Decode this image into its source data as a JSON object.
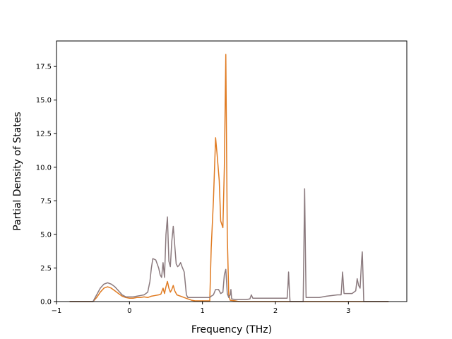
{
  "chart_data": {
    "type": "line",
    "title": "",
    "xlabel": "Frequency (THz)",
    "ylabel": "Partial Density of States",
    "xlim": [
      -1.0,
      3.8
    ],
    "ylim": [
      0,
      19.4
    ],
    "xticks": [
      -1,
      0,
      1,
      2,
      3
    ],
    "xtick_labels": [
      "−1",
      "0",
      "1",
      "2",
      "3"
    ],
    "yticks": [
      0.0,
      2.5,
      5.0,
      7.5,
      10.0,
      12.5,
      15.0,
      17.5
    ],
    "ytick_labels": [
      "0.0",
      "2.5",
      "5.0",
      "7.5",
      "10.0",
      "12.5",
      "15.0",
      "17.5"
    ],
    "grid": false,
    "legend": "none",
    "series": [
      {
        "color": "#e07b22",
        "points": [
          [
            -0.82,
            0.0
          ],
          [
            -0.5,
            0.0
          ],
          [
            -0.45,
            0.3
          ],
          [
            -0.4,
            0.7
          ],
          [
            -0.35,
            1.0
          ],
          [
            -0.3,
            1.1
          ],
          [
            -0.25,
            1.0
          ],
          [
            -0.2,
            0.8
          ],
          [
            -0.15,
            0.6
          ],
          [
            -0.1,
            0.4
          ],
          [
            -0.05,
            0.3
          ],
          [
            0.0,
            0.25
          ],
          [
            0.05,
            0.25
          ],
          [
            0.1,
            0.3
          ],
          [
            0.15,
            0.3
          ],
          [
            0.2,
            0.35
          ],
          [
            0.25,
            0.3
          ],
          [
            0.3,
            0.4
          ],
          [
            0.35,
            0.45
          ],
          [
            0.4,
            0.5
          ],
          [
            0.43,
            0.55
          ],
          [
            0.46,
            1.0
          ],
          [
            0.48,
            0.6
          ],
          [
            0.5,
            1.1
          ],
          [
            0.52,
            1.5
          ],
          [
            0.54,
            1.0
          ],
          [
            0.56,
            0.7
          ],
          [
            0.58,
            0.9
          ],
          [
            0.6,
            1.2
          ],
          [
            0.62,
            0.8
          ],
          [
            0.65,
            0.5
          ],
          [
            0.7,
            0.4
          ],
          [
            0.75,
            0.3
          ],
          [
            0.8,
            0.2
          ],
          [
            0.85,
            0.1
          ],
          [
            0.9,
            0.05
          ],
          [
            1.0,
            0.05
          ],
          [
            1.1,
            0.05
          ],
          [
            1.12,
            4.0
          ],
          [
            1.15,
            7.5
          ],
          [
            1.18,
            12.2
          ],
          [
            1.2,
            11.0
          ],
          [
            1.23,
            9.0
          ],
          [
            1.25,
            6.0
          ],
          [
            1.28,
            5.5
          ],
          [
            1.3,
            10.0
          ],
          [
            1.32,
            18.4
          ],
          [
            1.34,
            5.0
          ],
          [
            1.36,
            0.5
          ],
          [
            1.38,
            0.1
          ],
          [
            1.45,
            0.05
          ],
          [
            1.5,
            0.0
          ],
          [
            3.55,
            0.0
          ]
        ]
      },
      {
        "color": "#8b7a7e",
        "points": [
          [
            -0.82,
            0.0
          ],
          [
            -0.5,
            0.0
          ],
          [
            -0.45,
            0.5
          ],
          [
            -0.4,
            1.0
          ],
          [
            -0.35,
            1.3
          ],
          [
            -0.3,
            1.4
          ],
          [
            -0.25,
            1.3
          ],
          [
            -0.2,
            1.1
          ],
          [
            -0.15,
            0.8
          ],
          [
            -0.1,
            0.5
          ],
          [
            -0.05,
            0.35
          ],
          [
            0.0,
            0.35
          ],
          [
            0.05,
            0.35
          ],
          [
            0.1,
            0.4
          ],
          [
            0.15,
            0.45
          ],
          [
            0.2,
            0.5
          ],
          [
            0.25,
            0.7
          ],
          [
            0.28,
            1.5
          ],
          [
            0.3,
            2.5
          ],
          [
            0.32,
            3.2
          ],
          [
            0.36,
            3.1
          ],
          [
            0.4,
            2.5
          ],
          [
            0.42,
            2.0
          ],
          [
            0.44,
            1.8
          ],
          [
            0.46,
            2.9
          ],
          [
            0.48,
            1.8
          ],
          [
            0.5,
            5.0
          ],
          [
            0.52,
            6.3
          ],
          [
            0.54,
            3.0
          ],
          [
            0.56,
            2.6
          ],
          [
            0.58,
            4.5
          ],
          [
            0.6,
            5.6
          ],
          [
            0.62,
            4.2
          ],
          [
            0.64,
            2.8
          ],
          [
            0.66,
            2.6
          ],
          [
            0.68,
            2.7
          ],
          [
            0.7,
            2.9
          ],
          [
            0.72,
            2.6
          ],
          [
            0.75,
            2.2
          ],
          [
            0.78,
            0.5
          ],
          [
            0.8,
            0.3
          ],
          [
            0.9,
            0.3
          ],
          [
            1.0,
            0.3
          ],
          [
            1.1,
            0.3
          ],
          [
            1.12,
            0.4
          ],
          [
            1.15,
            0.5
          ],
          [
            1.18,
            0.9
          ],
          [
            1.22,
            0.9
          ],
          [
            1.25,
            0.6
          ],
          [
            1.28,
            0.7
          ],
          [
            1.3,
            2.0
          ],
          [
            1.32,
            2.4
          ],
          [
            1.34,
            0.6
          ],
          [
            1.36,
            0.3
          ],
          [
            1.38,
            0.5
          ],
          [
            1.39,
            0.9
          ],
          [
            1.4,
            0.2
          ],
          [
            1.45,
            0.15
          ],
          [
            1.6,
            0.15
          ],
          [
            1.65,
            0.2
          ],
          [
            1.67,
            0.5
          ],
          [
            1.69,
            0.25
          ],
          [
            1.8,
            0.25
          ],
          [
            2.0,
            0.25
          ],
          [
            2.16,
            0.25
          ],
          [
            2.17,
            1.0
          ],
          [
            2.18,
            2.2
          ],
          [
            2.19,
            1.0
          ],
          [
            2.2,
            0.0
          ],
          [
            2.38,
            0.0
          ],
          [
            2.39,
            4.0
          ],
          [
            2.4,
            8.4
          ],
          [
            2.41,
            4.0
          ],
          [
            2.42,
            0.3
          ],
          [
            2.6,
            0.3
          ],
          [
            2.7,
            0.4
          ],
          [
            2.85,
            0.5
          ],
          [
            2.9,
            0.5
          ],
          [
            2.92,
            2.2
          ],
          [
            2.94,
            0.6
          ],
          [
            3.05,
            0.6
          ],
          [
            3.1,
            0.8
          ],
          [
            3.12,
            1.7
          ],
          [
            3.14,
            1.2
          ],
          [
            3.16,
            1.0
          ],
          [
            3.18,
            3.0
          ],
          [
            3.19,
            3.7
          ],
          [
            3.2,
            2.0
          ],
          [
            3.21,
            0.0
          ],
          [
            3.55,
            0.0
          ]
        ]
      }
    ]
  }
}
